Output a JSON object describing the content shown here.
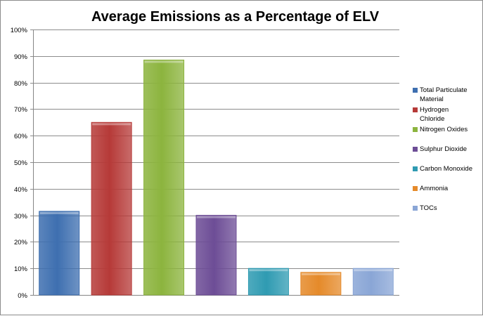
{
  "chart_data": {
    "type": "bar",
    "title": "Average Emissions as a Percentage of ELV",
    "xlabel": "",
    "ylabel": "",
    "ylim": [
      0,
      100
    ],
    "yticks": [
      "0%",
      "10%",
      "20%",
      "30%",
      "40%",
      "50%",
      "60%",
      "70%",
      "80%",
      "90%",
      "100%"
    ],
    "grid": true,
    "legend_position": "right",
    "categories": [
      "Total Particulate Material",
      "Hydrogen Chloride",
      "Nitrogen Oxides",
      "Sulphur Dioxide",
      "Carbon Monoxide",
      "Ammonia",
      "TOCs"
    ],
    "series": [
      {
        "values": [
          31.5,
          65,
          88.5,
          30,
          10,
          8.5,
          10
        ]
      }
    ],
    "colors": [
      "#3e6fb0",
      "#b63a38",
      "#8cb43e",
      "#6d4d96",
      "#2f9bb2",
      "#e58a2a",
      "#8aa6d6"
    ],
    "legend": [
      {
        "line1": "Total Particulate",
        "line2": "Material"
      },
      {
        "line1": "Hydrogen",
        "line2": "Chloride"
      },
      {
        "line1": "Nitrogen Oxides",
        "line2": ""
      },
      {
        "line1": "Sulphur Dioxide",
        "line2": ""
      },
      {
        "line1": "Carbon Monoxide",
        "line2": ""
      },
      {
        "line1": "Ammonia",
        "line2": ""
      },
      {
        "line1": "TOCs",
        "line2": ""
      }
    ]
  }
}
